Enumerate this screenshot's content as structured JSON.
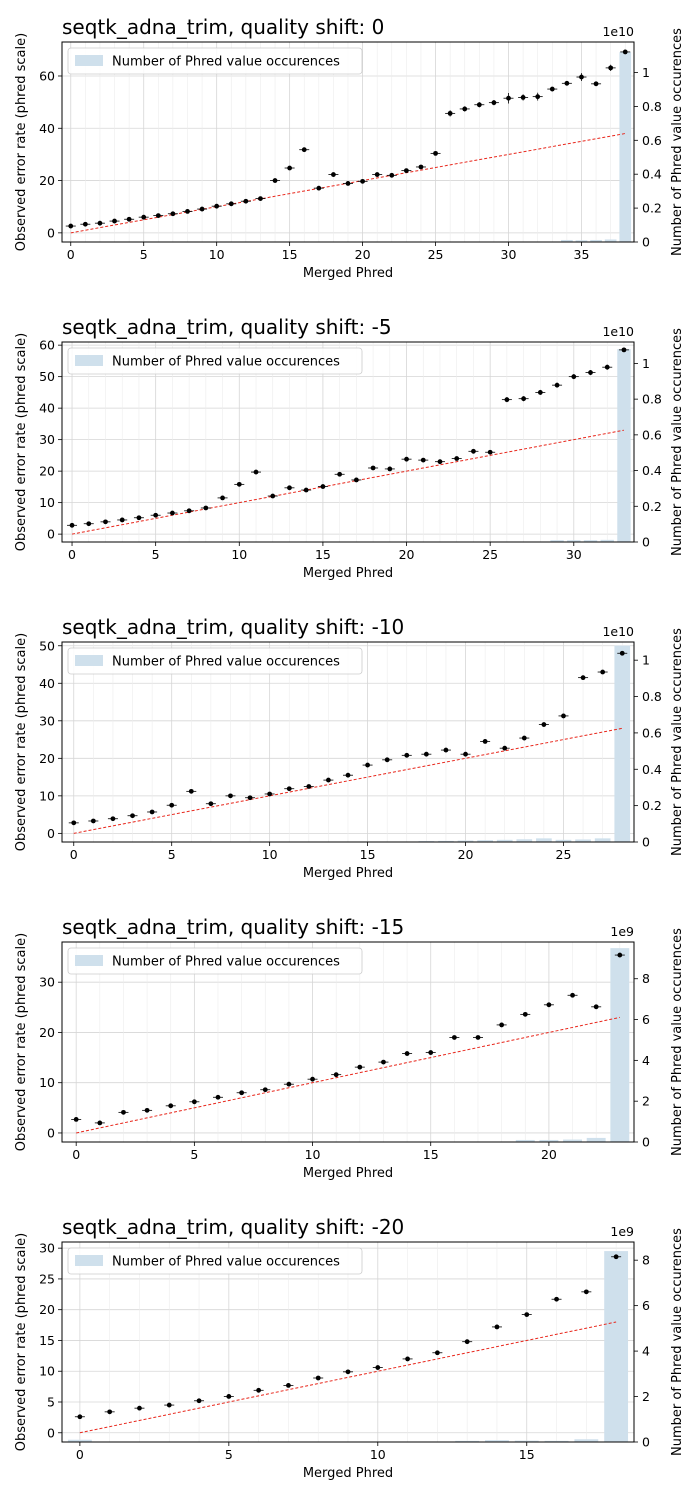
{
  "chart_data": [
    {
      "type": "scatter",
      "title": "seqtk_adna_trim, quality shift: 0",
      "xlabel": "Merged Phred",
      "ylabel": "Observed error rate (phred scale)",
      "y2label": "Number of Phred value occurences",
      "y2_exponent": "1e10",
      "legend": "Number of Phred value occurences",
      "legend_position": "top-left",
      "grid": true,
      "xlim": [
        -0.6,
        38.6
      ],
      "ylim": [
        -3.5,
        73
      ],
      "y2lim": [
        0,
        1.18
      ],
      "xticks": [
        0,
        5,
        10,
        15,
        20,
        25,
        30,
        35
      ],
      "yticks": [
        0,
        20,
        40,
        60
      ],
      "y2ticks": [
        0.0,
        0.2,
        0.4,
        0.6,
        0.8,
        1.0
      ],
      "x": [
        0,
        1,
        2,
        3,
        4,
        5,
        6,
        7,
        8,
        9,
        10,
        11,
        12,
        13,
        14,
        15,
        16,
        17,
        18,
        19,
        20,
        21,
        22,
        23,
        24,
        25,
        26,
        27,
        28,
        29,
        30,
        31,
        32,
        33,
        34,
        35,
        36,
        37,
        38
      ],
      "observed": [
        2.6,
        3.3,
        3.7,
        4.5,
        5.2,
        6.0,
        6.6,
        7.3,
        8.2,
        9.1,
        10.2,
        11.1,
        12.1,
        13.1,
        20.0,
        24.8,
        31.8,
        17.1,
        22.3,
        18.9,
        19.7,
        22.3,
        22.0,
        23.8,
        25.2,
        30.4,
        45.7,
        47.4,
        49.0,
        49.8,
        51.5,
        51.8,
        52.1,
        55.0,
        57.2,
        59.6,
        57.0,
        63.1,
        69.2
      ],
      "error": [
        0.3,
        0.3,
        0.3,
        0.3,
        0.3,
        0.3,
        0.3,
        0.3,
        0.3,
        0.3,
        0.3,
        0.3,
        0.3,
        0.3,
        0.5,
        0.5,
        0.6,
        0.5,
        0.5,
        0.5,
        0.5,
        0.5,
        0.5,
        0.5,
        0.5,
        0.6,
        1.2,
        1.0,
        1.0,
        1.0,
        2.0,
        1.2,
        1.5,
        0.8,
        0.8,
        1.5,
        0.8,
        1.2,
        0.5
      ],
      "expected_line": [
        0,
        38
      ],
      "occurrences": [
        0,
        0,
        0,
        0,
        0,
        0,
        0,
        0,
        0,
        0,
        0,
        0,
        0,
        0,
        0,
        0,
        0,
        0,
        0,
        0,
        0,
        0,
        0,
        0,
        0,
        0,
        0,
        0,
        0,
        0,
        0,
        0,
        0,
        0,
        0.012,
        0.01,
        0.012,
        0.015,
        1.12
      ]
    },
    {
      "type": "scatter",
      "title": "seqtk_adna_trim, quality shift: -5",
      "xlabel": "Merged Phred",
      "ylabel": "Observed error rate (phred scale)",
      "y2label": "Number of Phred value occurences",
      "y2_exponent": "1e10",
      "legend": "Number of Phred value occurences",
      "legend_position": "top-left",
      "grid": true,
      "xlim": [
        -0.6,
        33.6
      ],
      "ylim": [
        -2.5,
        61
      ],
      "y2lim": [
        0,
        1.12
      ],
      "xticks": [
        0,
        5,
        10,
        15,
        20,
        25,
        30
      ],
      "yticks": [
        0,
        10,
        20,
        30,
        40,
        50,
        60
      ],
      "y2ticks": [
        0.0,
        0.2,
        0.4,
        0.6,
        0.8,
        1.0
      ],
      "x": [
        0,
        1,
        2,
        3,
        4,
        5,
        6,
        7,
        8,
        9,
        10,
        11,
        12,
        13,
        14,
        15,
        16,
        17,
        18,
        19,
        20,
        21,
        22,
        23,
        24,
        25,
        26,
        27,
        28,
        29,
        30,
        31,
        32,
        33
      ],
      "observed": [
        2.8,
        3.3,
        3.9,
        4.5,
        5.2,
        6.0,
        6.7,
        7.4,
        8.3,
        11.5,
        15.8,
        19.7,
        12.1,
        14.7,
        14.0,
        15.1,
        19.0,
        17.2,
        21.0,
        20.7,
        23.8,
        23.5,
        23.0,
        24.0,
        26.3,
        26.0,
        42.7,
        43.0,
        45.0,
        47.3,
        50.0,
        51.3,
        53.0,
        58.5
      ],
      "error": [
        0.3,
        0.3,
        0.3,
        0.3,
        0.3,
        0.3,
        0.3,
        0.3,
        0.3,
        0.4,
        0.5,
        0.5,
        0.4,
        0.4,
        0.4,
        0.4,
        0.5,
        0.4,
        0.5,
        0.5,
        0.5,
        0.5,
        0.5,
        0.5,
        0.5,
        0.6,
        0.8,
        0.8,
        0.8,
        0.8,
        0.8,
        0.8,
        0.8,
        0.5
      ],
      "expected_line": [
        0,
        33
      ],
      "occurrences": [
        0,
        0,
        0,
        0,
        0,
        0,
        0,
        0,
        0,
        0,
        0,
        0,
        0,
        0,
        0,
        0,
        0,
        0,
        0,
        0,
        0,
        0,
        0,
        0,
        0,
        0,
        0,
        0,
        0,
        0.01,
        0.01,
        0.01,
        0.012,
        1.08
      ]
    },
    {
      "type": "scatter",
      "title": "seqtk_adna_trim, quality shift: -10",
      "xlabel": "Merged Phred",
      "ylabel": "Observed error rate (phred scale)",
      "y2label": "Number of Phred value occurences",
      "y2_exponent": "1e10",
      "legend": "Number of Phred value occurences",
      "legend_position": "top-left",
      "grid": true,
      "xlim": [
        -0.6,
        28.6
      ],
      "ylim": [
        -2.3,
        51
      ],
      "y2lim": [
        0,
        1.1
      ],
      "xticks": [
        0,
        5,
        10,
        15,
        20,
        25
      ],
      "yticks": [
        0,
        10,
        20,
        30,
        40,
        50
      ],
      "y2ticks": [
        0.0,
        0.2,
        0.4,
        0.6,
        0.8,
        1.0
      ],
      "x": [
        0,
        1,
        2,
        3,
        4,
        5,
        6,
        7,
        8,
        9,
        10,
        11,
        12,
        13,
        14,
        15,
        16,
        17,
        18,
        19,
        20,
        21,
        22,
        23,
        24,
        25,
        26,
        27,
        28
      ],
      "observed": [
        2.8,
        3.3,
        3.9,
        4.7,
        5.7,
        7.5,
        11.2,
        7.9,
        10.0,
        9.5,
        10.5,
        11.9,
        12.5,
        14.2,
        15.5,
        18.2,
        19.6,
        20.8,
        21.1,
        22.2,
        21.1,
        24.5,
        22.7,
        25.4,
        29.0,
        31.3,
        41.5,
        43.0,
        48.0
      ],
      "error": [
        0.3,
        0.3,
        0.3,
        0.3,
        0.3,
        0.3,
        0.4,
        0.3,
        0.3,
        0.3,
        0.3,
        0.3,
        0.3,
        0.3,
        0.3,
        0.3,
        0.3,
        0.3,
        0.3,
        0.3,
        0.3,
        0.3,
        0.3,
        0.3,
        0.3,
        0.3,
        0.3,
        0.3,
        0.3
      ],
      "expected_line": [
        0,
        28
      ],
      "occurrences": [
        0,
        0,
        0,
        0,
        0,
        0,
        0,
        0,
        0,
        0,
        0,
        0,
        0,
        0,
        0,
        0,
        0,
        0,
        0.005,
        0.006,
        0.008,
        0.01,
        0.012,
        0.015,
        0.02,
        0.012,
        0.014,
        0.02,
        1.08
      ]
    },
    {
      "type": "scatter",
      "title": "seqtk_adna_trim, quality shift: -15",
      "xlabel": "Merged Phred",
      "ylabel": "Observed error rate (phred scale)",
      "y2label": "Number of Phred value occurences",
      "y2_exponent": "1e9",
      "legend": "Number of Phred value occurences",
      "legend_position": "top-left",
      "grid": true,
      "xlim": [
        -0.6,
        23.6
      ],
      "ylim": [
        -1.8,
        38
      ],
      "y2lim": [
        0,
        9.8
      ],
      "xticks": [
        0,
        5,
        10,
        15,
        20
      ],
      "yticks": [
        0,
        10,
        20,
        30
      ],
      "y2ticks": [
        0,
        2,
        4,
        6,
        8
      ],
      "x": [
        0,
        1,
        2,
        3,
        4,
        5,
        6,
        7,
        8,
        9,
        10,
        11,
        12,
        13,
        14,
        15,
        16,
        17,
        18,
        19,
        20,
        21,
        22,
        23
      ],
      "observed": [
        2.7,
        2.0,
        4.1,
        4.5,
        5.4,
        6.2,
        7.1,
        8.0,
        8.6,
        9.7,
        10.7,
        11.6,
        13.1,
        14.1,
        15.8,
        16.0,
        19.0,
        19.0,
        21.5,
        23.6,
        25.5,
        27.4,
        25.1,
        35.4
      ],
      "error": [
        0.3,
        0.3,
        0.3,
        0.3,
        0.3,
        0.3,
        0.3,
        0.3,
        0.3,
        0.3,
        0.3,
        0.3,
        0.3,
        0.3,
        0.3,
        0.3,
        0.3,
        0.3,
        0.3,
        0.3,
        0.3,
        0.3,
        0.3,
        0.3
      ],
      "expected_line": [
        0,
        23
      ],
      "occurrences": [
        0,
        0,
        0,
        0,
        0,
        0,
        0,
        0,
        0,
        0,
        0,
        0,
        0,
        0,
        0,
        0,
        0,
        0,
        0,
        0.1,
        0.1,
        0.12,
        0.2,
        9.5
      ]
    },
    {
      "type": "scatter",
      "title": "seqtk_adna_trim, quality shift: -20",
      "xlabel": "Merged Phred",
      "ylabel": "Observed error rate (phred scale)",
      "y2label": "Number of Phred value occurences",
      "y2_exponent": "1e9",
      "legend": "Number of Phred value occurences",
      "legend_position": "top-left",
      "grid": true,
      "xlim": [
        -0.6,
        18.6
      ],
      "ylim": [
        -1.5,
        31
      ],
      "y2lim": [
        0,
        8.8
      ],
      "xticks": [
        0,
        5,
        10,
        15
      ],
      "yticks": [
        0,
        5,
        10,
        15,
        20,
        25,
        30
      ],
      "y2ticks": [
        0,
        2,
        4,
        6,
        8
      ],
      "x": [
        0,
        1,
        2,
        3,
        4,
        5,
        6,
        7,
        8,
        9,
        10,
        11,
        12,
        13,
        14,
        15,
        16,
        17,
        18
      ],
      "observed": [
        2.6,
        3.4,
        4.0,
        4.5,
        5.2,
        5.9,
        6.9,
        7.7,
        8.9,
        9.9,
        10.6,
        12.0,
        13.0,
        14.8,
        17.2,
        19.2,
        21.7,
        22.9,
        28.6
      ],
      "error": [
        0.3,
        0.3,
        0.3,
        0.3,
        0.3,
        0.3,
        0.3,
        0.3,
        0.3,
        0.3,
        0.3,
        0.3,
        0.3,
        0.3,
        0.3,
        0.3,
        0.3,
        0.3,
        0.3
      ],
      "expected_line": [
        0,
        18
      ],
      "occurrences": [
        0.1,
        0,
        0,
        0,
        0,
        0,
        0,
        0,
        0,
        0,
        0,
        0,
        0,
        0.05,
        0.08,
        0.06,
        0.05,
        0.12,
        8.4
      ]
    }
  ]
}
